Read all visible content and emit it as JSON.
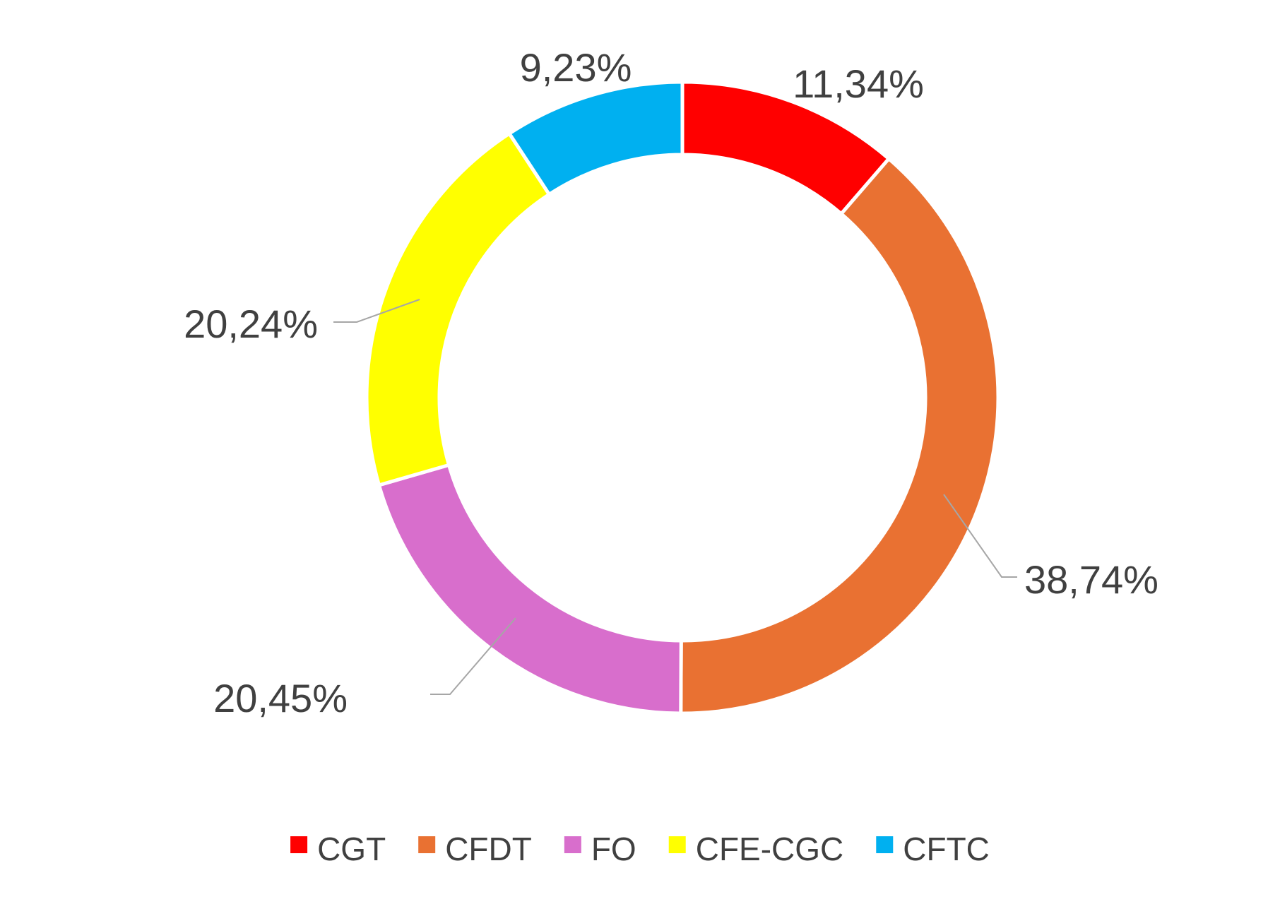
{
  "chart_data": {
    "type": "pie",
    "subtype": "donut",
    "title": "",
    "categories": [
      "CGT",
      "CFDT",
      "FO",
      "CFE-CGC",
      "CFTC"
    ],
    "values": [
      11.34,
      38.74,
      20.45,
      20.24,
      9.23
    ],
    "data_labels": [
      "11,34%",
      "38,74%",
      "20,45%",
      "20,24%",
      "9,23%"
    ],
    "colors": [
      "#ff0000",
      "#e97132",
      "#d86ecc",
      "#ffff00",
      "#00b0f0"
    ],
    "legend": {
      "position": "bottom",
      "entries": [
        "CGT",
        "CFDT",
        "FO",
        "CFE-CGC",
        "CFTC"
      ]
    }
  }
}
